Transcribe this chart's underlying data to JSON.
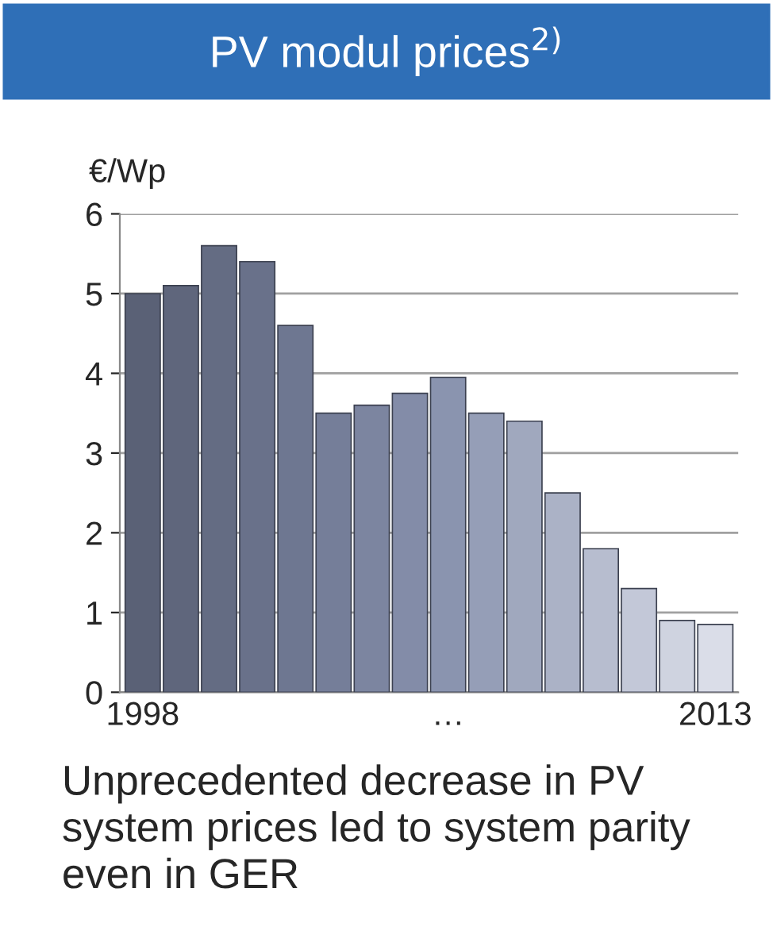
{
  "chart_data": {
    "type": "bar",
    "title": "PV modul prices$^{2)}$",
    "ylabel": "€/Wp",
    "categories": [
      "1998",
      null,
      null,
      null,
      null,
      null,
      null,
      null,
      "…",
      null,
      null,
      null,
      null,
      null,
      null,
      "2013"
    ],
    "values": [
      5.0,
      5.1,
      5.6,
      5.4,
      4.6,
      3.5,
      3.6,
      3.75,
      3.95,
      3.5,
      3.4,
      2.5,
      1.8,
      1.3,
      0.9,
      0.85
    ],
    "colors": [
      "#5a6176",
      "#5f667c",
      "#646c83",
      "#69718a",
      "#6e7791",
      "#757e99",
      "#7c85a0",
      "#838ca8",
      "#8a94af",
      "#959eb7",
      "#a0a8be",
      "#abb2c6",
      "#b7bdcf",
      "#c3c8d8",
      "#cfd3e0",
      "#dadde8"
    ],
    "ylim": [
      0,
      6
    ],
    "yticks": [
      0,
      1,
      2,
      3,
      4,
      5,
      6
    ],
    "grid": "y",
    "annotations": [
      "Unprecedented decrease in PV system prices led to system parity even in GER"
    ]
  }
}
